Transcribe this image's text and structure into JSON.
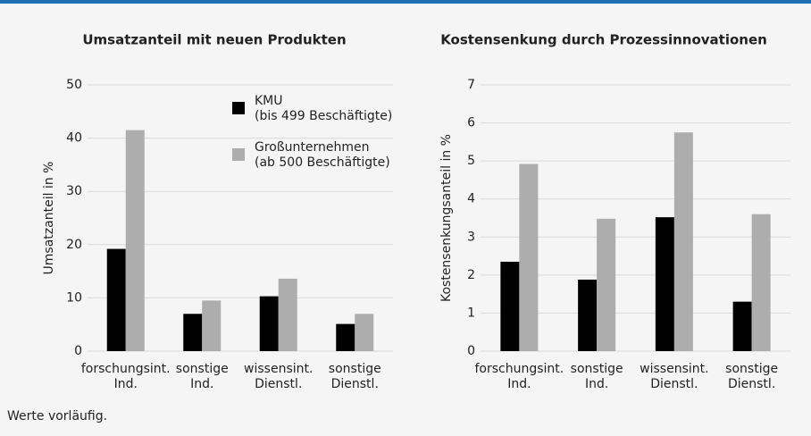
{
  "chart_data": [
    {
      "type": "bar",
      "title": "Umsatzanteil mit neuen Produkten",
      "ylabel": "Umsatzanteil in %",
      "categories": [
        "forschungsint.\nInd.",
        "sonstige\nInd.",
        "wissensint.\nDienstl.",
        "sonstige\nDienstl."
      ],
      "series": [
        {
          "name": "KMU\n(bis 499 Beschäftigte)",
          "color": "#000000",
          "values": [
            19.2,
            7,
            10.3,
            5.1
          ]
        },
        {
          "name": "Großunternehmen\n(ab 500 Beschäftigte)",
          "color": "#adadad",
          "values": [
            41.5,
            9.5,
            13.6,
            7
          ]
        }
      ],
      "ylim": [
        0,
        50
      ],
      "yticks": [
        0,
        10,
        20,
        30,
        40,
        50
      ],
      "grid": true,
      "legend": "top-right"
    },
    {
      "type": "bar",
      "title": "Kostensenkung durch Prozessinnovationen",
      "ylabel": "Kostensenkungsanteil in %",
      "categories": [
        "forschungsint.\nInd.",
        "sonstige\nInd.",
        "wissensint.\nDienstl.",
        "sonstige\nDienstl."
      ],
      "series": [
        {
          "color": "#000000",
          "values": [
            2.35,
            1.88,
            3.52,
            1.3
          ]
        },
        {
          "color": "#adadad",
          "values": [
            4.92,
            3.48,
            5.75,
            3.6
          ]
        }
      ],
      "ylim": [
        0,
        7
      ],
      "yticks": [
        0,
        1,
        2,
        3,
        4,
        5,
        6,
        7
      ],
      "grid": true
    }
  ],
  "note": "Werte vorläufig."
}
